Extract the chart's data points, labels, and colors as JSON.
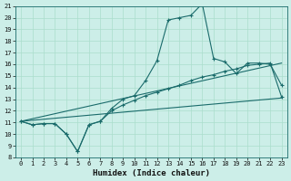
{
  "xlabel": "Humidex (Indice chaleur)",
  "xlim": [
    -0.5,
    23.5
  ],
  "ylim": [
    8,
    21
  ],
  "yticks": [
    8,
    9,
    10,
    11,
    12,
    13,
    14,
    15,
    16,
    17,
    18,
    19,
    20,
    21
  ],
  "xticks": [
    0,
    1,
    2,
    3,
    4,
    5,
    6,
    7,
    8,
    9,
    10,
    11,
    12,
    13,
    14,
    15,
    16,
    17,
    18,
    19,
    20,
    21,
    22,
    23
  ],
  "bg_color": "#cceee8",
  "grid_color": "#aaddcc",
  "line_color": "#1a6b6b",
  "line1_x": [
    0,
    1,
    2,
    3,
    4,
    5,
    6,
    7,
    8,
    9,
    10,
    11,
    12,
    13,
    14,
    15,
    16,
    17,
    18,
    19,
    20,
    21,
    22,
    23
  ],
  "line1_y": [
    11.1,
    10.8,
    10.9,
    10.9,
    10.0,
    8.5,
    10.8,
    11.1,
    12.2,
    13.0,
    13.3,
    14.6,
    16.3,
    19.8,
    20.0,
    20.2,
    21.2,
    16.5,
    16.2,
    15.2,
    16.1,
    16.1,
    16.0,
    14.2
  ],
  "line2_x": [
    0,
    1,
    2,
    3,
    4,
    5,
    6,
    7,
    8,
    9,
    10,
    11,
    12,
    13,
    14,
    15,
    16,
    17,
    18,
    19,
    20,
    21,
    22,
    23
  ],
  "line2_y": [
    11.1,
    10.8,
    10.9,
    10.9,
    10.0,
    8.5,
    10.8,
    11.1,
    12.0,
    12.5,
    12.9,
    13.3,
    13.6,
    13.9,
    14.2,
    14.6,
    14.9,
    15.1,
    15.4,
    15.6,
    15.9,
    16.0,
    16.1,
    13.2
  ],
  "line3_x": [
    0,
    23
  ],
  "line3_y": [
    11.1,
    13.1
  ],
  "line4_x": [
    0,
    23
  ],
  "line4_y": [
    11.1,
    16.1
  ],
  "marker": "+",
  "markersize": 3.5,
  "tick_fontsize": 5,
  "xlabel_fontsize": 6.5,
  "title_fontsize": 6.5
}
